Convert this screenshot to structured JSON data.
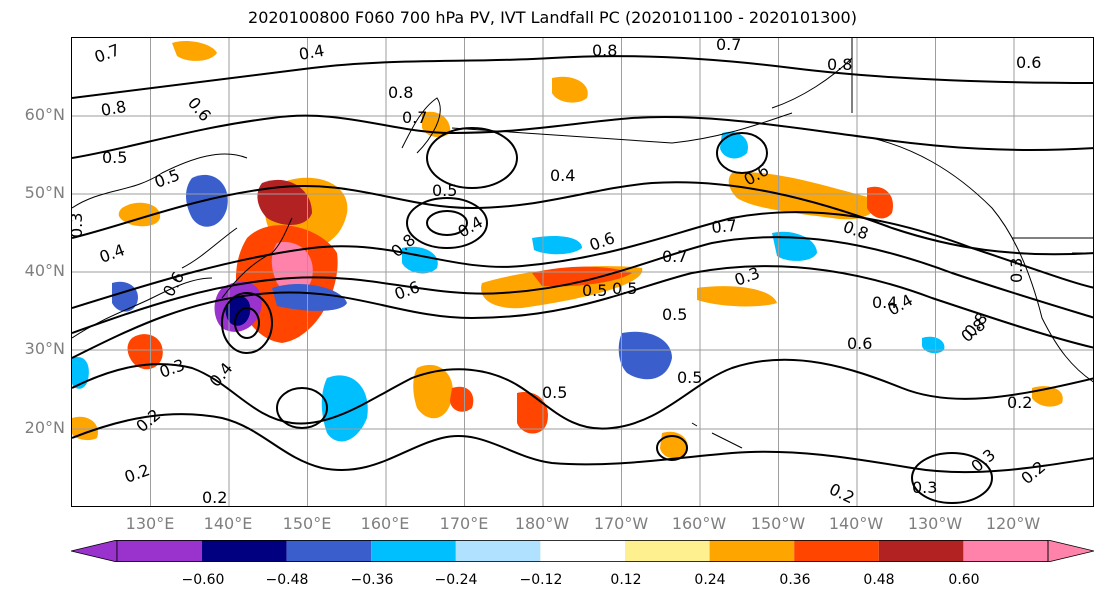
{
  "title": "2020100800 F060 700 hPa PV, IVT Landfall PC (2020101100 - 2020101300)",
  "lat_labels": [
    "60°N",
    "50°N",
    "40°N",
    "30°N",
    "20°N"
  ],
  "lon_labels": [
    "130°E",
    "140°E",
    "150°E",
    "160°E",
    "170°E",
    "180°W",
    "170°W",
    "160°W",
    "150°W",
    "140°W",
    "130°W",
    "120°W"
  ],
  "colorbar": {
    "ticks": [
      "−0.60",
      "−0.48",
      "−0.36",
      "−0.24",
      "−0.12",
      "0.12",
      "0.24",
      "0.36",
      "0.48",
      "0.60"
    ],
    "colors": [
      "#9a32cd",
      "#000080",
      "#3a5fcd",
      "#00bfff",
      "#b0e2ff",
      "#ffffff",
      "#fff08f",
      "#ffa500",
      "#ff4500",
      "#b22222",
      "#ff82ab"
    ]
  },
  "contour_labels": [
    "0.7",
    "0.4",
    "0.8",
    "0.7",
    "0.8",
    "0.6",
    "0.8",
    "0.6",
    "0.8",
    "0.7",
    "0.5",
    "0.5",
    "0.5",
    "0.4",
    "0.6",
    "0.8",
    "0.7",
    "0.4",
    "0.8",
    "0.7",
    "0.3",
    "0.4",
    "0.5",
    "0.6",
    "0.8",
    "0.5",
    "0.3",
    "0.6",
    "0.5",
    "0.6",
    "0.4",
    "0.3",
    "0.5",
    "0.5",
    "0.4",
    "0.6",
    "0.8",
    "0.3",
    "0.2",
    "0.3",
    "0.2",
    "0.3",
    "0.2",
    "0.4",
    "0.2",
    "0.2",
    "0.2"
  ]
}
